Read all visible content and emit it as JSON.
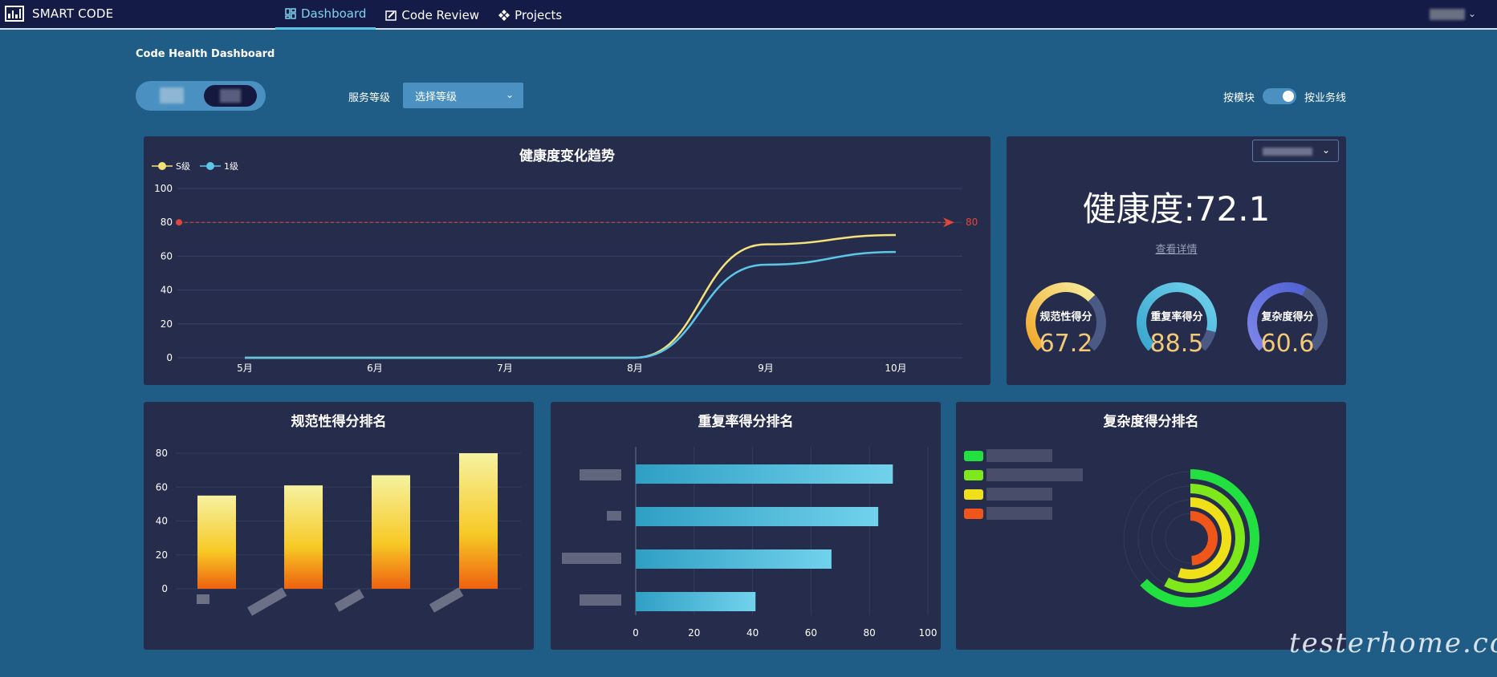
{
  "app": {
    "title": "SMART CODE"
  },
  "nav": {
    "items": [
      {
        "label": "Dashboard",
        "icon": "dashboard-icon",
        "active": true
      },
      {
        "label": "Code Review",
        "icon": "edit-icon",
        "active": false
      },
      {
        "label": "Projects",
        "icon": "projects-icon",
        "active": false
      }
    ]
  },
  "page": {
    "title": "Code Health Dashboard"
  },
  "filters": {
    "service_level_label": "服务等级",
    "service_level_placeholder": "选择等级",
    "toggle_left": "按模块",
    "toggle_right": "按业务线",
    "toggle_on": true
  },
  "trend": {
    "title": "健康度变化趋势",
    "legend": [
      "S级",
      "1级"
    ],
    "threshold_label": "80",
    "y_ticks": [
      "100",
      "80",
      "60",
      "40",
      "20",
      "0"
    ],
    "x_ticks": [
      "5月",
      "6月",
      "7月",
      "8月",
      "9月",
      "10月"
    ]
  },
  "health": {
    "score_text": "健康度:72.1",
    "detail_link": "查看详情",
    "gauges": [
      {
        "label": "规范性得分",
        "value": "67.2"
      },
      {
        "label": "重复率得分",
        "value": "88.5"
      },
      {
        "label": "复杂度得分",
        "value": "60.6"
      }
    ]
  },
  "panels": {
    "norm_title": "规范性得分排名",
    "dup_title": "重复率得分排名",
    "complex_title": "复杂度得分排名"
  },
  "chart_data": [
    {
      "type": "line",
      "title": "健康度变化趋势",
      "x": [
        "5月",
        "6月",
        "7月",
        "8月",
        "9月",
        "10月"
      ],
      "series": [
        {
          "name": "S级",
          "values": [
            0,
            0,
            0,
            0,
            67,
            72.5
          ],
          "color": "#f5e27a"
        },
        {
          "name": "1级",
          "values": [
            0,
            0,
            0,
            0,
            55,
            62.5
          ],
          "color": "#5cc6e6"
        }
      ],
      "ylim": [
        0,
        100
      ],
      "markline": 80
    },
    {
      "type": "bar",
      "title": "规范性得分排名",
      "categories": [
        "",
        "",
        "",
        ""
      ],
      "values": [
        55,
        61,
        67,
        80
      ],
      "ylim": [
        0,
        80
      ],
      "y_ticks": [
        "80",
        "60",
        "40",
        "20",
        "0"
      ]
    },
    {
      "type": "bar",
      "title": "重复率得分排名",
      "orientation": "horizontal",
      "categories": [
        "",
        "",
        "",
        ""
      ],
      "values": [
        88,
        83,
        67,
        41
      ],
      "xlim": [
        0,
        100
      ],
      "x_ticks": [
        "0",
        "20",
        "40",
        "60",
        "80",
        "100"
      ]
    },
    {
      "type": "pie",
      "title": "复杂度得分排名",
      "series": [
        {
          "name": "",
          "value": 0.63,
          "color": "#21e03f"
        },
        {
          "name": "",
          "value": 0.58,
          "color": "#7ee81a"
        },
        {
          "name": "",
          "value": 0.55,
          "color": "#f0e01a"
        },
        {
          "name": "",
          "value": 0.49,
          "color": "#f0551a"
        }
      ]
    }
  ]
}
